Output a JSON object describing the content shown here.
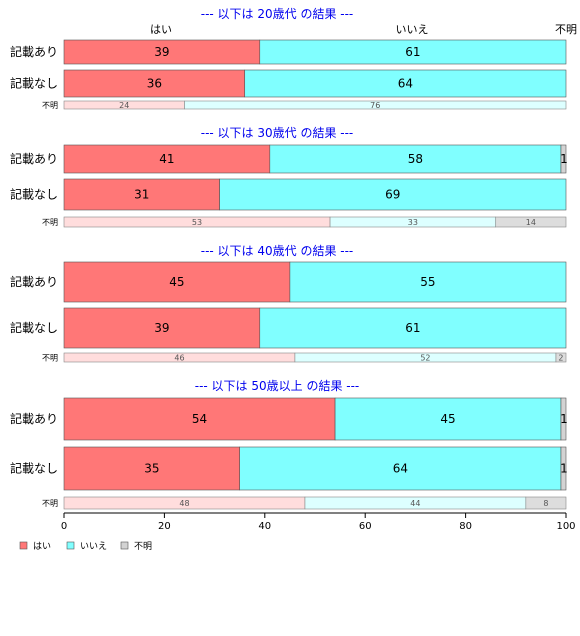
{
  "chart_data": {
    "type": "bar",
    "orientation": "horizontal",
    "stacked": true,
    "column_headers": [
      "はい",
      "いいえ",
      "不明"
    ],
    "xlim": [
      0,
      100
    ],
    "xticks": [
      0,
      20,
      40,
      60,
      80,
      100
    ],
    "legend": {
      "position": "bottom-left",
      "entries": [
        "はい",
        "いいえ",
        "不明"
      ]
    },
    "colors": {
      "yes": "#ff7777",
      "no": "#80ffff",
      "unknown": "#d3d3d3",
      "yes_light": "#ffdddd",
      "no_light": "#ddffff",
      "unknown_light": "#dddddd",
      "title": "#0000ee"
    },
    "panels": [
      {
        "title": "--- 以下は 20歳代 の結果 ---",
        "rows": [
          {
            "label": "記載あり",
            "values": [
              39,
              61,
              0
            ],
            "labels": [
              "39",
              "61",
              ""
            ]
          },
          {
            "label": "記載なし",
            "values": [
              36,
              64,
              0
            ],
            "labels": [
              "36",
              "64",
              ""
            ]
          },
          {
            "label": "不明",
            "values": [
              24,
              76,
              0
            ],
            "labels": [
              "24",
              "76",
              ""
            ],
            "small": true
          }
        ]
      },
      {
        "title": "--- 以下は 30歳代 の結果 ---",
        "rows": [
          {
            "label": "記載あり",
            "values": [
              41,
              58,
              1
            ],
            "labels": [
              "41",
              "58",
              "1"
            ]
          },
          {
            "label": "記載なし",
            "values": [
              31,
              69,
              0
            ],
            "labels": [
              "31",
              "69",
              ""
            ]
          },
          {
            "label": "不明",
            "values": [
              53,
              33,
              14
            ],
            "labels": [
              "53",
              "33",
              "14"
            ],
            "small": true
          }
        ]
      },
      {
        "title": "--- 以下は 40歳代 の結果 ---",
        "rows": [
          {
            "label": "記載あり",
            "values": [
              45,
              55,
              0
            ],
            "labels": [
              "45",
              "55",
              ""
            ]
          },
          {
            "label": "記載なし",
            "values": [
              39,
              61,
              0
            ],
            "labels": [
              "39",
              "61",
              ""
            ]
          },
          {
            "label": "不明",
            "values": [
              46,
              52,
              2
            ],
            "labels": [
              "46",
              "52",
              "2"
            ],
            "small": true
          }
        ]
      },
      {
        "title": "--- 以下は 50歳以上 の結果 ---",
        "rows": [
          {
            "label": "記載あり",
            "values": [
              54,
              45,
              1
            ],
            "labels": [
              "54",
              "45",
              "1"
            ]
          },
          {
            "label": "記載なし",
            "values": [
              35,
              64,
              1
            ],
            "labels": [
              "35",
              "64",
              "1"
            ]
          },
          {
            "label": "不明",
            "values": [
              48,
              44,
              8
            ],
            "labels": [
              "48",
              "44",
              "8"
            ],
            "small": true
          }
        ]
      }
    ]
  }
}
